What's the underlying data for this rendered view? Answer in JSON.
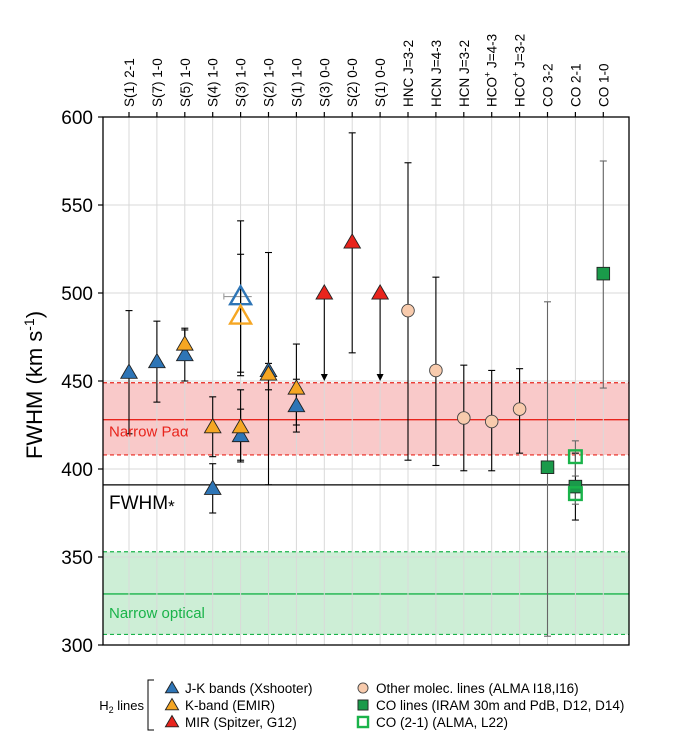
{
  "chart_data": {
    "type": "scatter",
    "ylabel_main": "FWHM (km s",
    "ylabel_sup": "-1",
    "ylabel_close": ")",
    "ylim": [
      300,
      600
    ],
    "yticks": [
      300,
      350,
      400,
      450,
      500,
      550,
      600
    ],
    "grid": true,
    "categories": [
      {
        "main": "S(1) 2-1"
      },
      {
        "main": "S(7) 1-0"
      },
      {
        "main": "S(5) 1-0"
      },
      {
        "main": "S(4) 1-0"
      },
      {
        "main": "S(3) 1-0"
      },
      {
        "main": "S(2) 1-0"
      },
      {
        "main": "S(1) 1-0"
      },
      {
        "main": "S(3) 0-0"
      },
      {
        "main": "S(2) 0-0"
      },
      {
        "main": "S(1) 0-0"
      },
      {
        "main": "HNC J=3-2"
      },
      {
        "main": "HCN J=4-3"
      },
      {
        "main": "HCN J=3-2"
      },
      {
        "pre": "HCO",
        "sup": "+",
        "post": " J=4-3"
      },
      {
        "pre": "HCO",
        "sup": "+",
        "post": " J=3-2"
      },
      {
        "main": "CO 3-2"
      },
      {
        "main": "CO 2-1"
      },
      {
        "main": "CO 1-0"
      }
    ],
    "bands": [
      {
        "label": "Narrow Paα",
        "center": 428,
        "low": 408,
        "high": 449,
        "color": "#e8241c",
        "fill": "#f9c9c9"
      },
      {
        "label": "Narrow optical",
        "center": 329,
        "low": 306,
        "high": 353,
        "color": "#1ab34a",
        "fill": "#cdeed6"
      }
    ],
    "reference_line": {
      "label": "FWHM",
      "star": "*",
      "value": 391
    },
    "series": [
      {
        "name": "J-K bands (Xshooter)",
        "marker": "triangle",
        "color": "#2e75b6",
        "filled": true,
        "points": [
          {
            "x": 0,
            "y": 455,
            "lo": 420,
            "hi": 490
          },
          {
            "x": 1,
            "y": 461,
            "lo": 438,
            "hi": 484
          },
          {
            "x": 2,
            "y": 465,
            "lo": 450,
            "hi": 480
          },
          {
            "x": 3,
            "y": 389,
            "lo": 375,
            "hi": 403
          },
          {
            "x": 4,
            "y": 419,
            "lo": 404,
            "hi": 434
          },
          {
            "x": 5,
            "y": 456,
            "lo": 445,
            "hi": 460
          },
          {
            "x": 6,
            "y": 436,
            "lo": 421,
            "hi": 451
          }
        ]
      },
      {
        "name": "J-K bands (Xshooter)",
        "marker": "triangle",
        "color": "#2e75b6",
        "filled": false,
        "points": [
          {
            "x": 4,
            "y": 498,
            "lo": 455,
            "hi": 541,
            "xerr": 1
          }
        ]
      },
      {
        "name": "K-band (EMIR)",
        "marker": "triangle",
        "color": "#f5a623",
        "filled": true,
        "points": [
          {
            "x": 2,
            "y": 471,
            "lo": 463,
            "hi": 479
          },
          {
            "x": 3,
            "y": 424,
            "lo": 407,
            "hi": 441
          },
          {
            "x": 4,
            "y": 424,
            "lo": 405,
            "hi": 445
          },
          {
            "x": 5,
            "y": 454,
            "lo": 391,
            "hi": 523
          },
          {
            "x": 6,
            "y": 446,
            "lo": 425,
            "hi": 471
          }
        ]
      },
      {
        "name": "K-band (EMIR)",
        "marker": "triangle",
        "color": "#f5a623",
        "filled": false,
        "points": [
          {
            "x": 4,
            "y": 487,
            "lo": 453,
            "hi": 522
          }
        ]
      },
      {
        "name": "MIR (Spitzer, G12)",
        "marker": "triangle",
        "color": "#e8241c",
        "filled": true,
        "points": [
          {
            "x": 7,
            "y": 500,
            "lo": 450,
            "arrow": true
          },
          {
            "x": 8,
            "y": 529,
            "lo": 466,
            "hi": 591
          },
          {
            "x": 9,
            "y": 500,
            "lo": 450,
            "arrow": true
          }
        ]
      },
      {
        "name": "Other molec. lines (ALMA I18,I16)",
        "marker": "circle",
        "color": "#f8cbad",
        "filled": true,
        "points": [
          {
            "x": 10,
            "y": 490,
            "lo": 405,
            "hi": 574
          },
          {
            "x": 11,
            "y": 456,
            "lo": 402,
            "hi": 509
          },
          {
            "x": 12,
            "y": 429,
            "lo": 399,
            "hi": 459
          },
          {
            "x": 13,
            "y": 427,
            "lo": 399,
            "hi": 456
          },
          {
            "x": 14,
            "y": 434,
            "lo": 409,
            "hi": 457
          }
        ]
      },
      {
        "name": "CO lines (IRAM 30m and PdB, D12, D14)",
        "marker": "square",
        "color": "#1a9a4a",
        "filled": true,
        "points": [
          {
            "x": 15,
            "y": 401,
            "lo": 305,
            "hi": 495
          },
          {
            "x": 16,
            "y": 390,
            "lo": 371,
            "hi": 409
          },
          {
            "x": 17,
            "y": 511,
            "lo": 446,
            "hi": 575
          }
        ]
      },
      {
        "name": "CO (2-1) (ALMA, L22)",
        "marker": "square",
        "color": "#1ab34a",
        "filled": false,
        "points": [
          {
            "x": 16,
            "y": 407,
            "lo": 396,
            "hi": 416
          },
          {
            "x": 16,
            "y": 386,
            "lo": 380,
            "hi": 392
          }
        ]
      }
    ],
    "legend": {
      "group_label_pre": "H",
      "group_label_sub": "2",
      "group_label_post": " lines",
      "items": [
        {
          "label": "J-K bands (Xshooter)",
          "marker": "triangle",
          "color": "#2e75b6",
          "filled": true
        },
        {
          "label": "K-band (EMIR)",
          "marker": "triangle",
          "color": "#f5a623",
          "filled": true
        },
        {
          "label": "MIR (Spitzer, G12)",
          "marker": "triangle",
          "color": "#e8241c",
          "filled": true
        },
        {
          "label": "Other molec. lines (ALMA I18,I16)",
          "marker": "circle",
          "color": "#f8cbad",
          "filled": true
        },
        {
          "label": "CO lines (IRAM 30m and PdB, D12, D14)",
          "marker": "square",
          "color": "#1a9a4a",
          "filled": true
        },
        {
          "label": "CO (2-1) (ALMA, L22)",
          "marker": "square",
          "color": "#1ab34a",
          "filled": false
        }
      ]
    }
  }
}
